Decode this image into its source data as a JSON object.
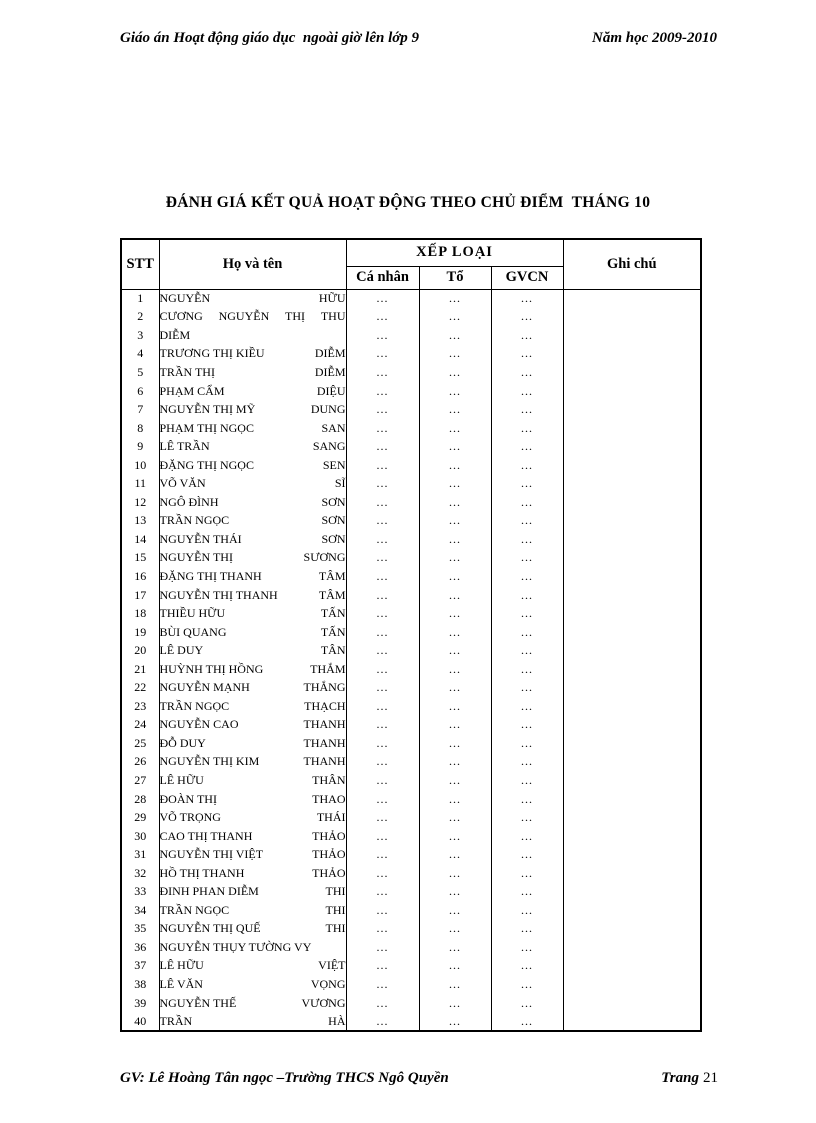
{
  "page_header": {
    "left": "Giáo án Hoạt động giáo dục  ngoài giờ lên lớp 9",
    "right": "Năm học 2009-2010"
  },
  "title": "ĐÁNH GIÁ KẾT QUẢ HOẠT ĐỘNG THEO CHỦ ĐIỂM  THÁNG 10",
  "table": {
    "columns": {
      "stt": "STT",
      "name": "Họ và tên",
      "xep_loai": "XẾP LOẠI",
      "ca_nhan": "Cá nhân",
      "to": "Tổ",
      "gvcn": "GVCN",
      "ghi_chu": "Ghi chú"
    },
    "rows": [
      {
        "stt": "1",
        "name": [
          "NGUYỄN",
          "HỮU"
        ],
        "ca_nhan": "...",
        "to": "...",
        "gvcn": "...",
        "ghi_chu": ""
      },
      {
        "stt": "2",
        "name": [
          "CƯƠNG",
          "NGUYỄN",
          "THỊ",
          "THU"
        ],
        "ca_nhan": "...",
        "to": "...",
        "gvcn": "...",
        "ghi_chu": ""
      },
      {
        "stt": "3",
        "name": [
          "DIỄM"
        ],
        "ca_nhan": "...",
        "to": "...",
        "gvcn": "...",
        "ghi_chu": ""
      },
      {
        "stt": "4",
        "name": [
          "TRƯƠNG THỊ KIỀU",
          "DIỄM"
        ],
        "ca_nhan": "...",
        "to": "...",
        "gvcn": "...",
        "ghi_chu": ""
      },
      {
        "stt": "5",
        "name": [
          "TRẦN THỊ",
          "DIỄM"
        ],
        "ca_nhan": "...",
        "to": "...",
        "gvcn": "...",
        "ghi_chu": ""
      },
      {
        "stt": "6",
        "name": [
          "PHẠM CẨM",
          "DIỆU"
        ],
        "ca_nhan": "...",
        "to": "...",
        "gvcn": "...",
        "ghi_chu": ""
      },
      {
        "stt": "7",
        "name": [
          "NGUYỄN THỊ MỸ",
          "DUNG"
        ],
        "ca_nhan": "...",
        "to": "...",
        "gvcn": "...",
        "ghi_chu": ""
      },
      {
        "stt": "8",
        "name": [
          "PHẠM THỊ NGỌC",
          "SAN"
        ],
        "ca_nhan": "...",
        "to": "...",
        "gvcn": "...",
        "ghi_chu": ""
      },
      {
        "stt": "9",
        "name": [
          "LÊ TRẦN",
          "SANG"
        ],
        "ca_nhan": "...",
        "to": "...",
        "gvcn": "...",
        "ghi_chu": ""
      },
      {
        "stt": "10",
        "name": [
          "ĐẶNG THỊ NGỌC",
          "SEN"
        ],
        "ca_nhan": "...",
        "to": "...",
        "gvcn": "...",
        "ghi_chu": ""
      },
      {
        "stt": "11",
        "name": [
          "VÕ VĂN",
          "SĨ"
        ],
        "ca_nhan": "...",
        "to": "...",
        "gvcn": "...",
        "ghi_chu": ""
      },
      {
        "stt": "12",
        "name": [
          "NGÔ ĐÌNH",
          "SƠN"
        ],
        "ca_nhan": "...",
        "to": "...",
        "gvcn": "...",
        "ghi_chu": ""
      },
      {
        "stt": "13",
        "name": [
          "TRẦN NGỌC",
          "SƠN"
        ],
        "ca_nhan": "...",
        "to": "...",
        "gvcn": "...",
        "ghi_chu": ""
      },
      {
        "stt": "14",
        "name": [
          "NGUYỄN THÁI",
          "SƠN"
        ],
        "ca_nhan": "...",
        "to": "...",
        "gvcn": "...",
        "ghi_chu": ""
      },
      {
        "stt": "15",
        "name": [
          "NGUYỄN THỊ",
          "SƯƠNG"
        ],
        "ca_nhan": "...",
        "to": "...",
        "gvcn": "...",
        "ghi_chu": ""
      },
      {
        "stt": "16",
        "name": [
          "ĐẶNG THỊ THANH",
          "TÂM"
        ],
        "ca_nhan": "...",
        "to": "...",
        "gvcn": "...",
        "ghi_chu": ""
      },
      {
        "stt": "17",
        "name": [
          "NGUYỄN THỊ THANH",
          "TÂM"
        ],
        "ca_nhan": "...",
        "to": "...",
        "gvcn": "...",
        "ghi_chu": ""
      },
      {
        "stt": "18",
        "name": [
          "THIỀU HỮU",
          "TẤN"
        ],
        "ca_nhan": "...",
        "to": "...",
        "gvcn": "...",
        "ghi_chu": ""
      },
      {
        "stt": "19",
        "name": [
          "BÙI QUANG",
          "TẤN"
        ],
        "ca_nhan": "...",
        "to": "...",
        "gvcn": "...",
        "ghi_chu": ""
      },
      {
        "stt": "20",
        "name": [
          "LÊ DUY",
          "TÂN"
        ],
        "ca_nhan": "...",
        "to": "...",
        "gvcn": "...",
        "ghi_chu": ""
      },
      {
        "stt": "21",
        "name": [
          "HUỲNH THỊ HỒNG",
          "THẮM"
        ],
        "ca_nhan": "...",
        "to": "...",
        "gvcn": "...",
        "ghi_chu": ""
      },
      {
        "stt": "22",
        "name": [
          "NGUYỄN MẠNH",
          "THẮNG"
        ],
        "ca_nhan": "...",
        "to": "...",
        "gvcn": "...",
        "ghi_chu": ""
      },
      {
        "stt": "23",
        "name": [
          "TRẦN NGỌC",
          "THẠCH"
        ],
        "ca_nhan": "...",
        "to": "...",
        "gvcn": "...",
        "ghi_chu": ""
      },
      {
        "stt": "24",
        "name": [
          "NGUYỄN CAO",
          "THANH"
        ],
        "ca_nhan": "...",
        "to": "...",
        "gvcn": "...",
        "ghi_chu": ""
      },
      {
        "stt": "25",
        "name": [
          "ĐỖ DUY",
          "THANH"
        ],
        "ca_nhan": "...",
        "to": "...",
        "gvcn": "...",
        "ghi_chu": ""
      },
      {
        "stt": "26",
        "name": [
          "NGUYỄN THỊ KIM",
          "THANH"
        ],
        "ca_nhan": "...",
        "to": "...",
        "gvcn": "...",
        "ghi_chu": ""
      },
      {
        "stt": "27",
        "name": [
          "LÊ HỮU",
          "THÂN"
        ],
        "ca_nhan": "...",
        "to": "...",
        "gvcn": "...",
        "ghi_chu": ""
      },
      {
        "stt": "28",
        "name": [
          "ĐOÀN THỊ",
          "THAO"
        ],
        "ca_nhan": "...",
        "to": "...",
        "gvcn": "...",
        "ghi_chu": ""
      },
      {
        "stt": "29",
        "name": [
          "VÕ TRỌNG",
          "THÁI"
        ],
        "ca_nhan": "...",
        "to": "...",
        "gvcn": "...",
        "ghi_chu": ""
      },
      {
        "stt": "30",
        "name": [
          "CAO THỊ THANH",
          "THẢO"
        ],
        "ca_nhan": "...",
        "to": "...",
        "gvcn": "...",
        "ghi_chu": ""
      },
      {
        "stt": "31",
        "name": [
          "NGUYỄN THỊ VIỆT",
          "THẢO"
        ],
        "ca_nhan": "...",
        "to": "...",
        "gvcn": "...",
        "ghi_chu": ""
      },
      {
        "stt": "32",
        "name": [
          "HỒ THỊ THANH",
          "THẢO"
        ],
        "ca_nhan": "...",
        "to": "...",
        "gvcn": "...",
        "ghi_chu": ""
      },
      {
        "stt": "33",
        "name": [
          "ĐINH PHAN DIỄM",
          "THI"
        ],
        "ca_nhan": "...",
        "to": "...",
        "gvcn": "...",
        "ghi_chu": ""
      },
      {
        "stt": "34",
        "name": [
          "TRẦN NGỌC",
          "THI"
        ],
        "ca_nhan": "...",
        "to": "...",
        "gvcn": "...",
        "ghi_chu": ""
      },
      {
        "stt": "35",
        "name": [
          "NGUYỄN THỊ QUẾ",
          "THI"
        ],
        "ca_nhan": "...",
        "to": "...",
        "gvcn": "...",
        "ghi_chu": ""
      },
      {
        "stt": "36",
        "name": [
          "NGUYỄN THỤY TƯỜNG VY"
        ],
        "ca_nhan": "...",
        "to": "...",
        "gvcn": "...",
        "ghi_chu": ""
      },
      {
        "stt": "37",
        "name": [
          "LÊ HỮU",
          "VIỆT"
        ],
        "ca_nhan": "...",
        "to": "...",
        "gvcn": "...",
        "ghi_chu": ""
      },
      {
        "stt": "38",
        "name": [
          "LÊ VĂN",
          "VỌNG"
        ],
        "ca_nhan": "...",
        "to": "...",
        "gvcn": "...",
        "ghi_chu": ""
      },
      {
        "stt": "39",
        "name": [
          "NGUYỄN THẾ",
          "VƯƠNG"
        ],
        "ca_nhan": "...",
        "to": "...",
        "gvcn": "...",
        "ghi_chu": ""
      },
      {
        "stt": "40",
        "name": [
          "TRẦN",
          "HÀ"
        ],
        "ca_nhan": "...",
        "to": "...",
        "gvcn": "...",
        "ghi_chu": ""
      }
    ]
  },
  "page_footer": {
    "left": "GV: Lê Hoàng Tân ngọc –Trường THCS Ngô Quyền",
    "right_label": "Trang",
    "right_number": "21"
  }
}
